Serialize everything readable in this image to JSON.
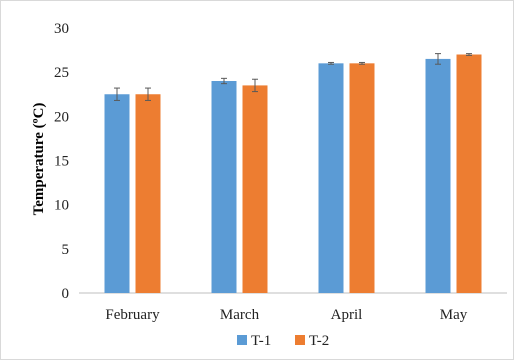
{
  "chart_data": {
    "type": "bar",
    "title": "",
    "xlabel": "",
    "ylabel": "Temperature (ºC)",
    "categories": [
      "February",
      "March",
      "April",
      "May"
    ],
    "ylim": [
      0,
      30
    ],
    "yticks": [
      0,
      5,
      10,
      15,
      20,
      25,
      30
    ],
    "grid": false,
    "legend_position": "bottom",
    "series": [
      {
        "name": "T-1",
        "color": "#5b9bd5",
        "values": [
          22.5,
          24.0,
          26.0,
          26.5
        ],
        "errors": [
          0.7,
          0.3,
          0.1,
          0.6
        ]
      },
      {
        "name": "T-2",
        "color": "#ed7d31",
        "values": [
          22.5,
          23.5,
          26.0,
          27.0
        ],
        "errors": [
          0.7,
          0.7,
          0.1,
          0.1
        ]
      }
    ]
  }
}
